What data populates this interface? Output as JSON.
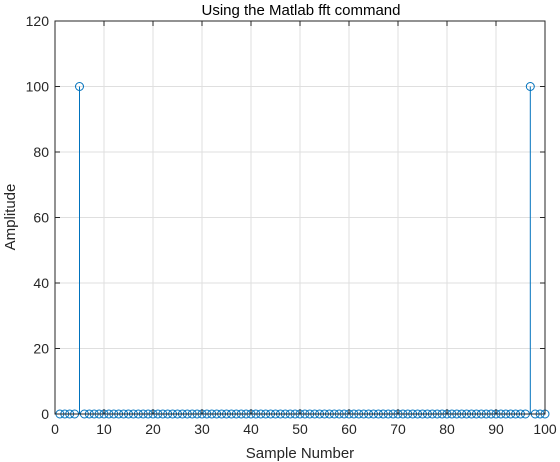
{
  "chart_data": {
    "type": "stem",
    "title": "Using the Matlab fft command",
    "xlabel": "Sample Number",
    "ylabel": "Amplitude",
    "xlim": [
      0,
      100
    ],
    "ylim": [
      0,
      120
    ],
    "xticks": [
      0,
      10,
      20,
      30,
      40,
      50,
      60,
      70,
      80,
      90,
      100
    ],
    "yticks": [
      0,
      20,
      40,
      60,
      80,
      100,
      120
    ],
    "grid": true,
    "colors": {
      "series": "#0072BD",
      "grid": "#DFDFDF",
      "axis": "#262626"
    },
    "series": [
      {
        "x": [
          1,
          2,
          3,
          4,
          5,
          6,
          7,
          8,
          9,
          10,
          11,
          12,
          13,
          14,
          15,
          16,
          17,
          18,
          19,
          20,
          21,
          22,
          23,
          24,
          25,
          26,
          27,
          28,
          29,
          30,
          31,
          32,
          33,
          34,
          35,
          36,
          37,
          38,
          39,
          40,
          41,
          42,
          43,
          44,
          45,
          46,
          47,
          48,
          49,
          50,
          51,
          52,
          53,
          54,
          55,
          56,
          57,
          58,
          59,
          60,
          61,
          62,
          63,
          64,
          65,
          66,
          67,
          68,
          69,
          70,
          71,
          72,
          73,
          74,
          75,
          76,
          77,
          78,
          79,
          80,
          81,
          82,
          83,
          84,
          85,
          86,
          87,
          88,
          89,
          90,
          91,
          92,
          93,
          94,
          95,
          96,
          97,
          98,
          99,
          100
        ],
        "values": [
          0,
          0,
          0,
          0,
          100,
          0,
          0,
          0,
          0,
          0,
          0,
          0,
          0,
          0,
          0,
          0,
          0,
          0,
          0,
          0,
          0,
          0,
          0,
          0,
          0,
          0,
          0,
          0,
          0,
          0,
          0,
          0,
          0,
          0,
          0,
          0,
          0,
          0,
          0,
          0,
          0,
          0,
          0,
          0,
          0,
          0,
          0,
          0,
          0,
          0,
          0,
          0,
          0,
          0,
          0,
          0,
          0,
          0,
          0,
          0,
          0,
          0,
          0,
          0,
          0,
          0,
          0,
          0,
          0,
          0,
          0,
          0,
          0,
          0,
          0,
          0,
          0,
          0,
          0,
          0,
          0,
          0,
          0,
          0,
          0,
          0,
          0,
          0,
          0,
          0,
          0,
          0,
          0,
          0,
          0,
          0,
          100,
          0,
          0,
          0
        ]
      }
    ]
  }
}
